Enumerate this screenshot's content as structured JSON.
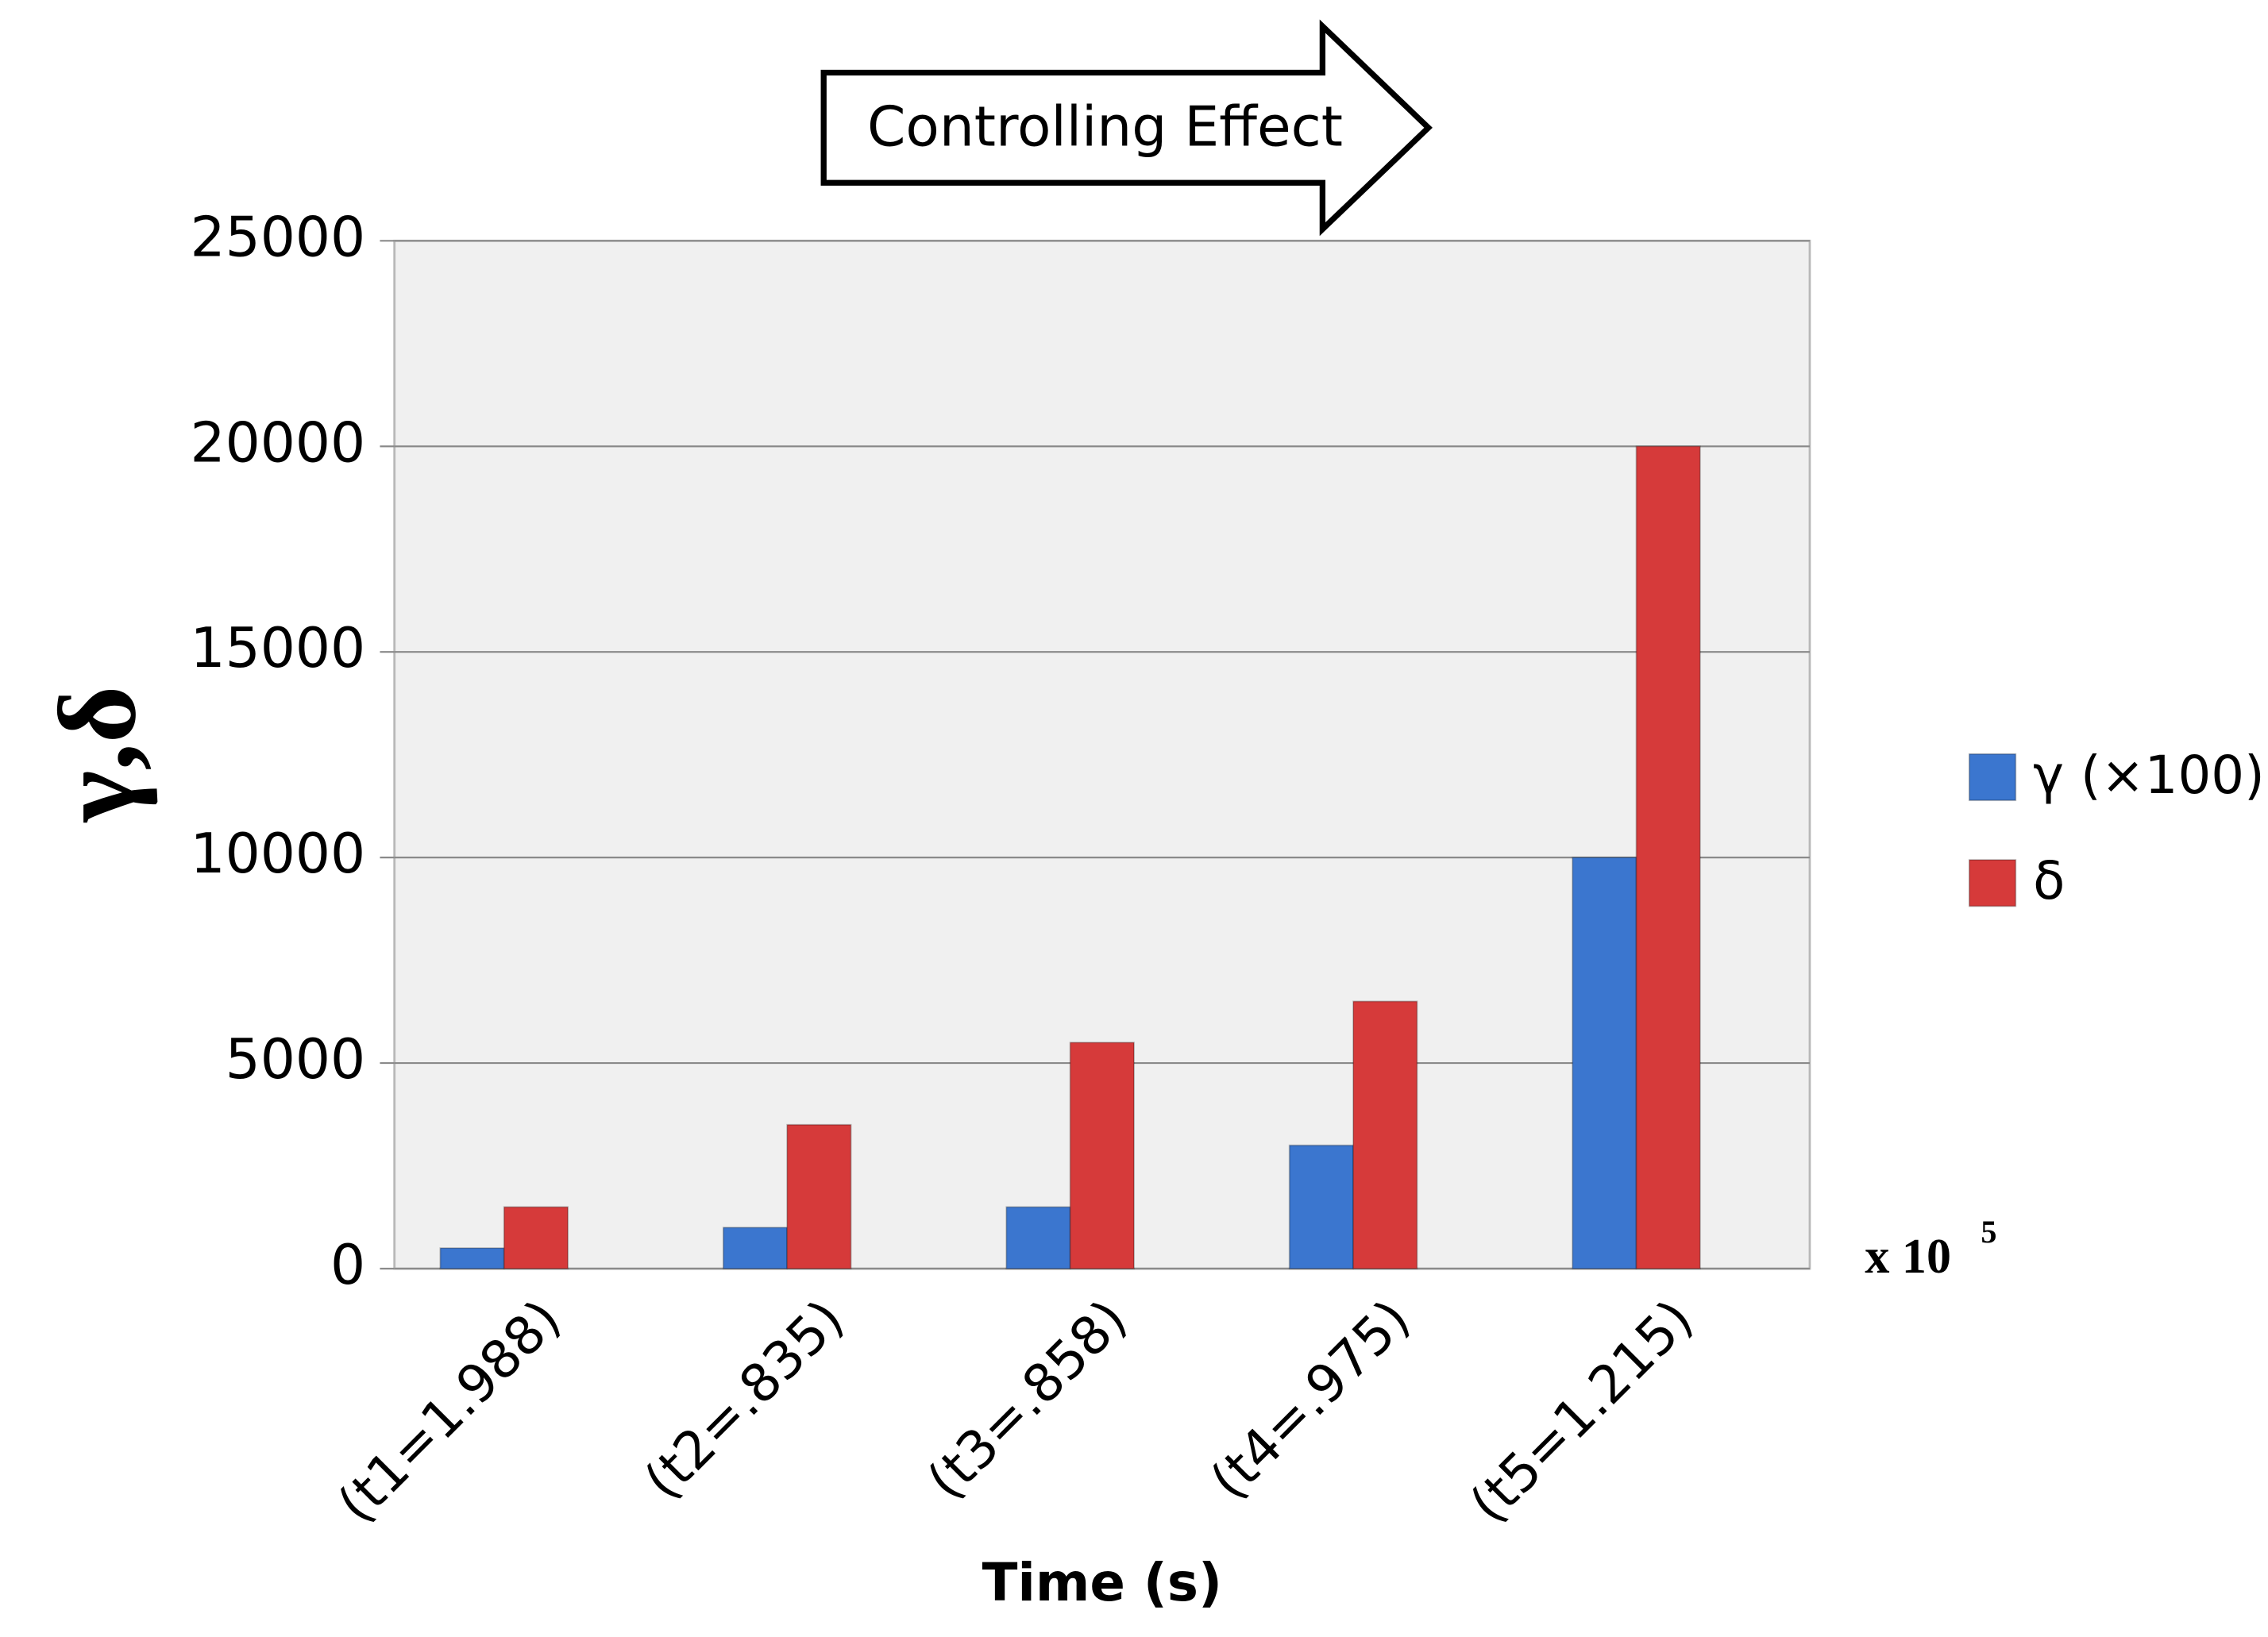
{
  "chart_data": {
    "type": "bar",
    "annotation": "Controlling Effect",
    "y_label": "γ,δ",
    "x_label": "Time (s)",
    "axis_multiplier": {
      "base": "x 10",
      "exponent": "5"
    },
    "categories": [
      "(t1=1.988)",
      "(t2=.835)",
      "(t3=.858)",
      "(t4=.975)",
      "(t5=1.215)"
    ],
    "series": [
      {
        "name": "γ (×100)",
        "color": "#3b76cf",
        "values": [
          500,
          1000,
          1500,
          3000,
          10000
        ]
      },
      {
        "name": "δ",
        "color": "#d63a3a",
        "values": [
          1500,
          3500,
          5500,
          6500,
          20000
        ]
      }
    ],
    "ylim": [
      0,
      25000
    ],
    "yticks": [
      0,
      5000,
      10000,
      15000,
      20000,
      25000
    ],
    "grid": true,
    "legend": "right"
  }
}
